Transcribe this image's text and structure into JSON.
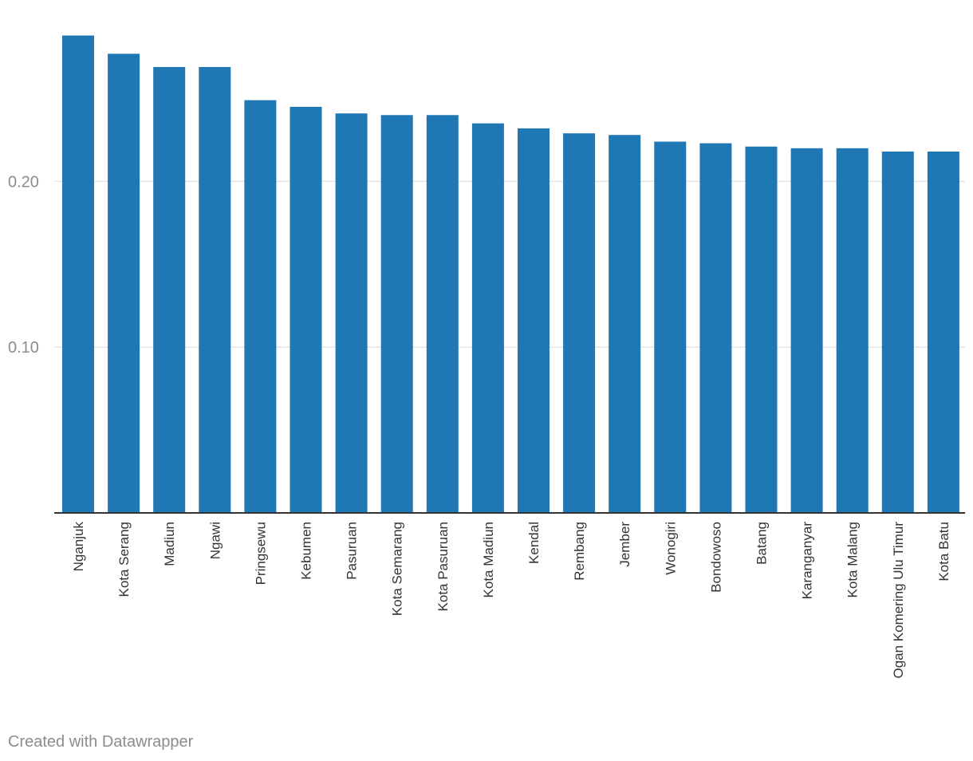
{
  "footer": {
    "credit": "Created with Datawrapper"
  },
  "chart_data": {
    "type": "bar",
    "title": "",
    "xlabel": "",
    "ylabel": "",
    "categories": [
      "Nganjuk",
      "Kota Serang",
      "Madiun",
      "Ngawi",
      "Pringsewu",
      "Kebumen",
      "Pasuruan",
      "Kota Semarang",
      "Kota Pasuruan",
      "Kota Madiun",
      "Kendal",
      "Rembang",
      "Jember",
      "Wonogiri",
      "Bondowoso",
      "Batang",
      "Karanganyar",
      "Kota Malang",
      "Ogan Komering Ulu Timur",
      "Kota Batu"
    ],
    "values": [
      0.288,
      0.277,
      0.269,
      0.269,
      0.249,
      0.245,
      0.241,
      0.24,
      0.24,
      0.235,
      0.232,
      0.229,
      0.228,
      0.224,
      0.223,
      0.221,
      0.22,
      0.22,
      0.218,
      0.218
    ],
    "ylim": [
      0,
      0.3
    ],
    "y_ticks": [
      {
        "value": 0.1,
        "label": "0.10"
      },
      {
        "value": 0.2,
        "label": "0.20"
      }
    ],
    "grid": true,
    "legend": "none",
    "colors": {
      "bar": "#1f77b4",
      "grid": "#e5e5e5",
      "axis": "#333333",
      "tick_label": "#8c8c8c",
      "category_label": "#333333"
    }
  }
}
